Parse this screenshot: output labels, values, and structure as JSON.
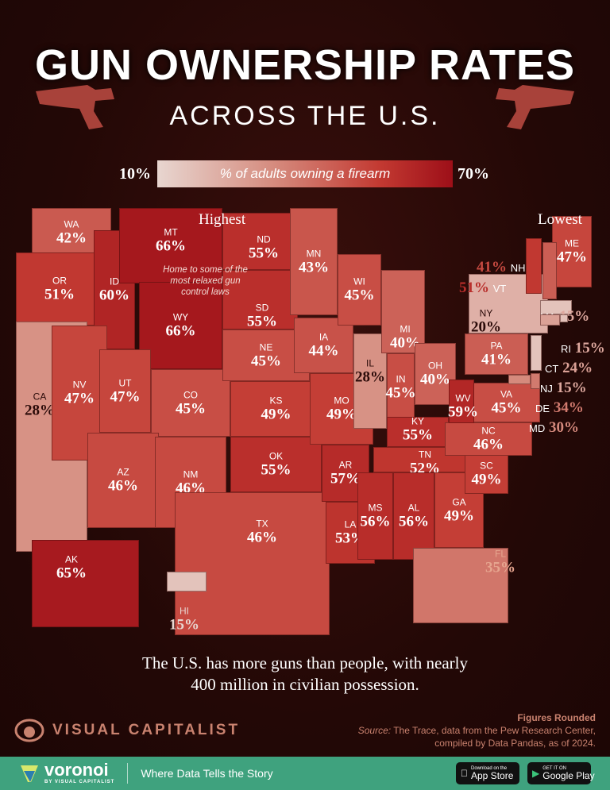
{
  "header": {
    "title": "GUN OWNERSHIP RATES",
    "subtitle": "ACROSS THE U.S."
  },
  "legend": {
    "min": "10%",
    "max": "70%",
    "label": "% of adults owning a firearm",
    "min_color": "#e8d6d0",
    "max_color": "#9d0f18"
  },
  "annotations": {
    "highest": "Highest",
    "lowest": "Lowest",
    "highest_note": "Home to some of the most relaxed gun control laws"
  },
  "states": [
    {
      "abbr": "WA",
      "value": "42%"
    },
    {
      "abbr": "OR",
      "value": "51%"
    },
    {
      "abbr": "CA",
      "value": "28%"
    },
    {
      "abbr": "ID",
      "value": "60%"
    },
    {
      "abbr": "MT",
      "value": "66%"
    },
    {
      "abbr": "WY",
      "value": "66%"
    },
    {
      "abbr": "NV",
      "value": "47%"
    },
    {
      "abbr": "UT",
      "value": "47%"
    },
    {
      "abbr": "CO",
      "value": "45%"
    },
    {
      "abbr": "AZ",
      "value": "46%"
    },
    {
      "abbr": "NM",
      "value": "46%"
    },
    {
      "abbr": "ND",
      "value": "55%"
    },
    {
      "abbr": "SD",
      "value": "55%"
    },
    {
      "abbr": "NE",
      "value": "45%"
    },
    {
      "abbr": "KS",
      "value": "49%"
    },
    {
      "abbr": "OK",
      "value": "55%"
    },
    {
      "abbr": "TX",
      "value": "46%"
    },
    {
      "abbr": "MN",
      "value": "43%"
    },
    {
      "abbr": "IA",
      "value": "44%"
    },
    {
      "abbr": "MO",
      "value": "49%"
    },
    {
      "abbr": "AR",
      "value": "57%"
    },
    {
      "abbr": "LA",
      "value": "53%"
    },
    {
      "abbr": "WI",
      "value": "45%"
    },
    {
      "abbr": "IL",
      "value": "28%"
    },
    {
      "abbr": "MI",
      "value": "40%"
    },
    {
      "abbr": "IN",
      "value": "45%"
    },
    {
      "abbr": "OH",
      "value": "40%"
    },
    {
      "abbr": "KY",
      "value": "55%"
    },
    {
      "abbr": "TN",
      "value": "52%"
    },
    {
      "abbr": "MS",
      "value": "56%"
    },
    {
      "abbr": "AL",
      "value": "56%"
    },
    {
      "abbr": "GA",
      "value": "49%"
    },
    {
      "abbr": "FL",
      "value": "35%"
    },
    {
      "abbr": "SC",
      "value": "49%"
    },
    {
      "abbr": "NC",
      "value": "46%"
    },
    {
      "abbr": "VA",
      "value": "45%"
    },
    {
      "abbr": "WV",
      "value": "59%"
    },
    {
      "abbr": "PA",
      "value": "41%"
    },
    {
      "abbr": "NY",
      "value": "20%"
    },
    {
      "abbr": "ME",
      "value": "47%"
    },
    {
      "abbr": "AK",
      "value": "65%"
    },
    {
      "abbr": "HI",
      "value": "15%"
    },
    {
      "abbr": "NH",
      "value": "41%"
    },
    {
      "abbr": "VT",
      "value": "51%"
    },
    {
      "abbr": "MA",
      "value": "15%"
    },
    {
      "abbr": "RI",
      "value": "15%"
    },
    {
      "abbr": "CT",
      "value": "24%"
    },
    {
      "abbr": "NJ",
      "value": "15%"
    },
    {
      "abbr": "DE",
      "value": "34%"
    },
    {
      "abbr": "MD",
      "value": "30%"
    }
  ],
  "tagline": "The U.S. has more guns than people, with nearly 400 million in civilian possession.",
  "brand": "VISUAL CAPITALIST",
  "source": {
    "rounded": "Figures Rounded",
    "label": "Source:",
    "text": "The Trace, data from the Pew Research Center, compiled by Data Pandas, as of 2024."
  },
  "footer": {
    "logo": "voronoi",
    "logo_sub": "BY VISUAL CAPITALIST",
    "tagline": "Where Data Tells the Story",
    "appstore_small": "Download on the",
    "appstore": "App Store",
    "gplay_small": "GET IT ON",
    "gplay": "Google Play"
  }
}
